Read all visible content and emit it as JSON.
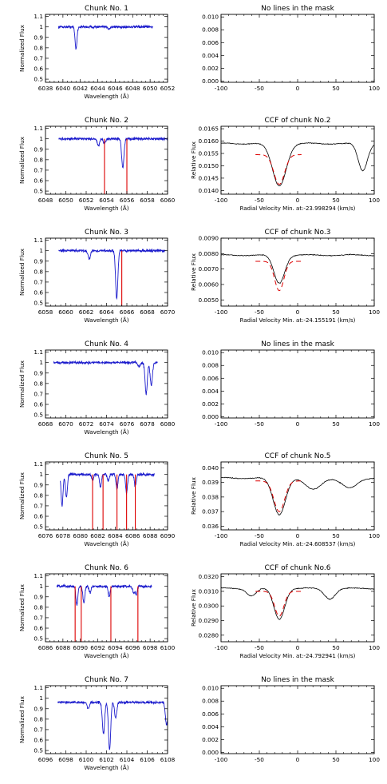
{
  "axis_labels": {
    "flux": "Normalized Flux",
    "wavelength": "Wavelength (Å)",
    "relative_flux": "Relative Flux",
    "velocity_prefix": "Radial Velocity Min. at:"
  },
  "colors": {
    "spectrum": "#1a1acc",
    "mask": "#dd0000",
    "ccf": "#000000",
    "fit": "#dd0000",
    "axes": "#000000"
  },
  "chart_data": [
    {
      "type": "line",
      "title": "Chunk No. 1",
      "xlabel": "Wavelength (Å)",
      "ylabel": "Normalized Flux",
      "xlim": [
        6038,
        6052
      ],
      "ylim": [
        0.47,
        1.12
      ],
      "xticks": [
        6038,
        6040,
        6042,
        6044,
        6046,
        6048,
        6050,
        6052
      ],
      "yticks": [
        0.5,
        0.6,
        0.7,
        0.8,
        0.9,
        1.0,
        1.1
      ],
      "grid": false,
      "spectrum_range": [
        6039.5,
        6050.3
      ],
      "continuum": 1.0,
      "absorption_lines": [
        {
          "center": 6041.5,
          "depth": 0.21
        },
        {
          "center": 6045.3,
          "depth": 0.02
        }
      ],
      "mask_lines": []
    },
    {
      "type": "line",
      "title": "No lines in the mask",
      "xlabel": "",
      "ylabel": "",
      "xlim": [
        -100,
        100
      ],
      "ylim": [
        -0.0002,
        0.0104
      ],
      "xticks": [
        -100,
        -50,
        0,
        50,
        100
      ],
      "yticks": [
        0.0,
        0.002,
        0.004,
        0.006,
        0.008,
        0.01
      ],
      "ytick_labels": [
        "0.000",
        "0.002",
        "0.004",
        "0.006",
        "0.008",
        "0.010"
      ],
      "grid": false
    },
    {
      "type": "line",
      "title": "Chunk No. 2",
      "xlabel": "Wavelength (Å)",
      "ylabel": "Normalized Flux",
      "xlim": [
        6048,
        6060
      ],
      "ylim": [
        0.47,
        1.12
      ],
      "xticks": [
        6048,
        6050,
        6052,
        6054,
        6056,
        6058,
        6060
      ],
      "yticks": [
        0.5,
        0.6,
        0.7,
        0.8,
        0.9,
        1.0,
        1.1
      ],
      "grid": false,
      "spectrum_range": [
        6049.3,
        6060.0
      ],
      "continuum": 1.0,
      "absorption_lines": [
        {
          "center": 6053.2,
          "depth": 0.07
        },
        {
          "center": 6053.8,
          "depth": 0.05
        },
        {
          "center": 6055.6,
          "depth": 0.28
        }
      ],
      "mask_lines": [
        6053.8,
        6056.0
      ]
    },
    {
      "type": "line",
      "title": "CCF of chunk No.2",
      "xlabel": "Radial Velocity Min. at:-23.998294 (km/s)",
      "ylabel": "Relative Flux",
      "xlim": [
        -100,
        100
      ],
      "ylim": [
        0.01385,
        0.0166
      ],
      "xticks": [
        -100,
        -50,
        0,
        50,
        100
      ],
      "yticks": [
        0.014,
        0.0145,
        0.015,
        0.0155,
        0.016,
        0.0165
      ],
      "ytick_labels": [
        "0.0140",
        "0.0145",
        "0.0150",
        "0.0155",
        "0.0160",
        "0.0165"
      ],
      "grid": false,
      "baseline": 0.0159,
      "dips": [
        {
          "center": -24,
          "depth": 0.0017,
          "width": 9
        },
        {
          "center": 85,
          "depth": 0.0011,
          "width": 6
        }
      ],
      "fit": {
        "x_range": [
          -55,
          5
        ],
        "baseline": 0.01545,
        "center": -24,
        "depth": 0.0012,
        "width": 7
      }
    },
    {
      "type": "line",
      "title": "Chunk No. 3",
      "xlabel": "Wavelength (Å)",
      "ylabel": "Normalized Flux",
      "xlim": [
        6058,
        6070
      ],
      "ylim": [
        0.47,
        1.12
      ],
      "xticks": [
        6058,
        6060,
        6062,
        6064,
        6066,
        6068,
        6070
      ],
      "yticks": [
        0.5,
        0.6,
        0.7,
        0.8,
        0.9,
        1.0,
        1.1
      ],
      "grid": false,
      "spectrum_range": [
        6059.3,
        6069.8
      ],
      "continuum": 1.0,
      "absorption_lines": [
        {
          "center": 6062.3,
          "depth": 0.08
        },
        {
          "center": 6065.0,
          "depth": 0.46
        }
      ],
      "mask_lines": [
        6065.5
      ]
    },
    {
      "type": "line",
      "title": "CCF of chunk No.3",
      "xlabel": "Radial Velocity Min. at:-24.155191 (km/s)",
      "ylabel": "Relative Flux",
      "xlim": [
        -100,
        100
      ],
      "ylim": [
        0.0046,
        0.009
      ],
      "xticks": [
        -100,
        -50,
        0,
        50,
        100
      ],
      "yticks": [
        0.005,
        0.006,
        0.007,
        0.008,
        0.009
      ],
      "ytick_labels": [
        "0.0050",
        "0.0060",
        "0.0070",
        "0.0080",
        "0.0090"
      ],
      "grid": false,
      "baseline": 0.0079,
      "dips": [
        {
          "center": -24,
          "depth": 0.0018,
          "width": 7
        }
      ],
      "fit": {
        "x_range": [
          -55,
          5
        ],
        "baseline": 0.0075,
        "center": -24,
        "depth": 0.0019,
        "width": 6
      }
    },
    {
      "type": "line",
      "title": "Chunk No. 4",
      "xlabel": "Wavelength (Å)",
      "ylabel": "Normalized Flux",
      "xlim": [
        6068,
        6080
      ],
      "ylim": [
        0.47,
        1.12
      ],
      "xticks": [
        6068,
        6070,
        6072,
        6074,
        6076,
        6078,
        6080
      ],
      "yticks": [
        0.5,
        0.6,
        0.7,
        0.8,
        0.9,
        1.0,
        1.1
      ],
      "grid": false,
      "spectrum_range": [
        6068.8,
        6079.0
      ],
      "continuum": 1.0,
      "absorption_lines": [
        {
          "center": 6077.9,
          "depth": 0.3
        },
        {
          "center": 6078.4,
          "depth": 0.22
        },
        {
          "center": 6077.2,
          "depth": 0.04
        }
      ],
      "mask_lines": []
    },
    {
      "type": "line",
      "title": "No lines in the mask",
      "xlabel": "",
      "ylabel": "",
      "xlim": [
        -100,
        100
      ],
      "ylim": [
        -0.0002,
        0.0104
      ],
      "xticks": [
        -100,
        -50,
        0,
        50,
        100
      ],
      "yticks": [
        0.0,
        0.002,
        0.004,
        0.006,
        0.008,
        0.01
      ],
      "ytick_labels": [
        "0.000",
        "0.002",
        "0.004",
        "0.006",
        "0.008",
        "0.010"
      ],
      "grid": false
    },
    {
      "type": "line",
      "title": "Chunk No. 5",
      "xlabel": "Wavelength (Å)",
      "ylabel": "Normalized Flux",
      "xlim": [
        6076,
        6090
      ],
      "ylim": [
        0.47,
        1.12
      ],
      "xticks": [
        6076,
        6078,
        6080,
        6082,
        6084,
        6086,
        6088,
        6090
      ],
      "yticks": [
        0.5,
        0.6,
        0.7,
        0.8,
        0.9,
        1.0,
        1.1
      ],
      "grid": false,
      "spectrum_range": [
        6077.7,
        6088.5
      ],
      "continuum": 1.0,
      "absorption_lines": [
        {
          "center": 6077.9,
          "depth": 0.3
        },
        {
          "center": 6078.4,
          "depth": 0.22
        },
        {
          "center": 6081.4,
          "depth": 0.06
        },
        {
          "center": 6082.3,
          "depth": 0.12
        },
        {
          "center": 6083.2,
          "depth": 0.06
        },
        {
          "center": 6084.2,
          "depth": 0.14
        },
        {
          "center": 6085.3,
          "depth": 0.18
        },
        {
          "center": 6086.3,
          "depth": 0.11
        }
      ],
      "mask_lines": [
        6081.4,
        6082.6,
        6084.2,
        6085.3,
        6086.3
      ]
    },
    {
      "type": "line",
      "title": "CCF of chunk No.5",
      "xlabel": "Radial Velocity Min. at:-24.608537 (km/s)",
      "ylabel": "Relative Flux",
      "xlim": [
        -100,
        100
      ],
      "ylim": [
        0.03575,
        0.0404
      ],
      "xticks": [
        -100,
        -50,
        0,
        50,
        100
      ],
      "yticks": [
        0.036,
        0.037,
        0.038,
        0.039,
        0.04
      ],
      "ytick_labels": [
        "0.036",
        "0.037",
        "0.038",
        "0.039",
        "0.040"
      ],
      "grid": false,
      "baseline": 0.0393,
      "dips": [
        {
          "center": -24,
          "depth": 0.0025,
          "width": 8
        },
        {
          "center": 20,
          "depth": 0.0008,
          "width": 10
        },
        {
          "center": 68,
          "depth": 0.0007,
          "width": 10
        }
      ],
      "fit": {
        "x_range": [
          -55,
          5
        ],
        "baseline": 0.0391,
        "center": -24,
        "depth": 0.0021,
        "width": 7
      }
    },
    {
      "type": "line",
      "title": "Chunk No. 6",
      "xlabel": "Wavelength (Å)",
      "ylabel": "Normalized Flux",
      "xlim": [
        6086,
        6100
      ],
      "ylim": [
        0.47,
        1.12
      ],
      "xticks": [
        6086,
        6088,
        6090,
        6092,
        6094,
        6096,
        6098,
        6100
      ],
      "yticks": [
        0.5,
        0.6,
        0.7,
        0.8,
        0.9,
        1.0,
        1.1
      ],
      "grid": false,
      "spectrum_range": [
        6087.3,
        6098.2
      ],
      "continuum": 1.0,
      "absorption_lines": [
        {
          "center": 6089.6,
          "depth": 0.18
        },
        {
          "center": 6090.4,
          "depth": 0.16
        },
        {
          "center": 6091.1,
          "depth": 0.06
        },
        {
          "center": 6093.3,
          "depth": 0.1
        },
        {
          "center": 6096.1,
          "depth": 0.06
        },
        {
          "center": 6096.4,
          "depth": 0.08
        }
      ],
      "mask_lines": [
        6089.4,
        6090.1,
        6093.5,
        6096.6
      ]
    },
    {
      "type": "line",
      "title": "CCF of chunk No.6",
      "xlabel": "Radial Velocity Min. at:-24.792941 (km/s)",
      "ylabel": "Relative Flux",
      "xlim": [
        -100,
        100
      ],
      "ylim": [
        0.02755,
        0.0322
      ],
      "xticks": [
        -100,
        -50,
        0,
        50,
        100
      ],
      "yticks": [
        0.028,
        0.029,
        0.03,
        0.031,
        0.032
      ],
      "ytick_labels": [
        "0.0280",
        "0.0290",
        "0.0300",
        "0.0310",
        "0.0320"
      ],
      "grid": false,
      "baseline": 0.0312,
      "dips": [
        {
          "center": -24,
          "depth": 0.0021,
          "width": 7
        },
        {
          "center": -60,
          "depth": 0.0005,
          "width": 6
        },
        {
          "center": 42,
          "depth": 0.0007,
          "width": 7
        }
      ],
      "fit": {
        "x_range": [
          -55,
          5
        ],
        "baseline": 0.031,
        "center": -24,
        "depth": 0.0017,
        "width": 6
      }
    },
    {
      "type": "line",
      "title": "Chunk No. 7",
      "xlabel": "Wavelength (Å)",
      "ylabel": "Normalized Flux",
      "xlim": [
        6096,
        6108
      ],
      "ylim": [
        0.47,
        1.12
      ],
      "xticks": [
        6096,
        6098,
        6100,
        6102,
        6104,
        6106,
        6108
      ],
      "yticks": [
        0.5,
        0.6,
        0.7,
        0.8,
        0.9,
        1.0,
        1.1
      ],
      "grid": false,
      "spectrum_range": [
        6097.2,
        6108.0
      ],
      "continuum": 0.96,
      "absorption_lines": [
        {
          "center": 6101.7,
          "depth": 0.3
        },
        {
          "center": 6102.3,
          "depth": 0.45
        },
        {
          "center": 6102.9,
          "depth": 0.15
        },
        {
          "center": 6100.2,
          "depth": 0.06
        },
        {
          "center": 6107.9,
          "depth": 0.22
        }
      ],
      "mask_lines": []
    },
    {
      "type": "line",
      "title": "No lines in the mask",
      "xlabel": "",
      "ylabel": "",
      "xlim": [
        -100,
        100
      ],
      "ylim": [
        -0.0002,
        0.0104
      ],
      "xticks": [
        -100,
        -50,
        0,
        50,
        100
      ],
      "yticks": [
        0.0,
        0.002,
        0.004,
        0.006,
        0.008,
        0.01
      ],
      "ytick_labels": [
        "0.000",
        "0.002",
        "0.004",
        "0.006",
        "0.008",
        "0.010"
      ],
      "grid": false
    }
  ]
}
